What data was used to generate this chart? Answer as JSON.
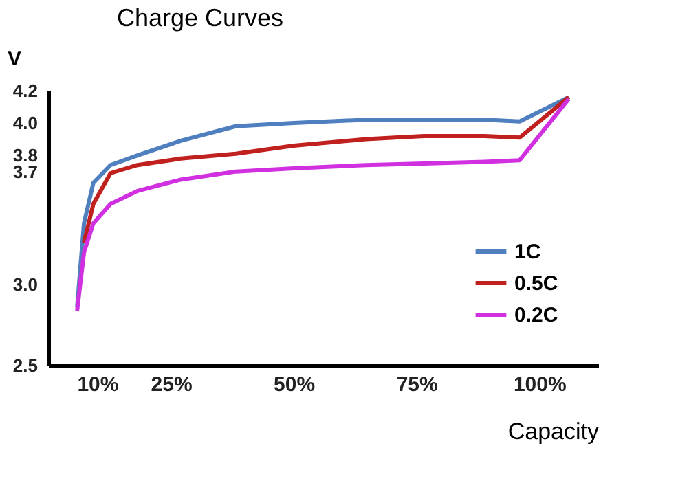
{
  "chart_data": {
    "type": "line",
    "title": "Charge Curves",
    "xlabel": "Capacity",
    "ylabel": "V",
    "x": [
      5.9,
      7.3,
      9.2,
      12.7,
      18.2,
      27,
      38.2,
      50,
      64.7,
      76.5,
      88.8,
      96,
      106
    ],
    "series": [
      {
        "name": "1C",
        "color": "#4f7fbf",
        "values": [
          2.86,
          3.38,
          3.63,
          3.74,
          3.8,
          3.89,
          3.98,
          4.0,
          4.02,
          4.02,
          4.02,
          4.01,
          4.16
        ]
      },
      {
        "name": "0.5C",
        "color": "#c0201e",
        "values": [
          null,
          3.26,
          3.5,
          3.69,
          3.74,
          3.78,
          3.81,
          3.86,
          3.9,
          3.92,
          3.92,
          3.91,
          4.16
        ]
      },
      {
        "name": "0.2C",
        "color": "#d030e0",
        "values": [
          2.84,
          3.2,
          3.38,
          3.5,
          3.58,
          3.65,
          3.7,
          3.72,
          3.74,
          3.75,
          3.76,
          3.77,
          4.15
        ]
      }
    ],
    "xlim": [
      0,
      112
    ],
    "xticks": [
      {
        "value": 10,
        "label": "10%"
      },
      {
        "value": 25,
        "label": "25%"
      },
      {
        "value": 50,
        "label": "50%"
      },
      {
        "value": 75,
        "label": "75%"
      },
      {
        "value": 100,
        "label": "100%"
      }
    ],
    "ylim": [
      2.5,
      4.2
    ],
    "yticks": [
      {
        "value": 2.5,
        "label": "2.5"
      },
      {
        "value": 3.0,
        "label": "3.0"
      },
      {
        "value": 3.7,
        "label": "3.7"
      },
      {
        "value": 3.8,
        "label": "3.8"
      },
      {
        "value": 4.0,
        "label": "4.0"
      },
      {
        "value": 4.2,
        "label": "4.2"
      }
    ],
    "grid": false,
    "legend": "bottom right",
    "marker": "none",
    "line_style": "solid"
  }
}
